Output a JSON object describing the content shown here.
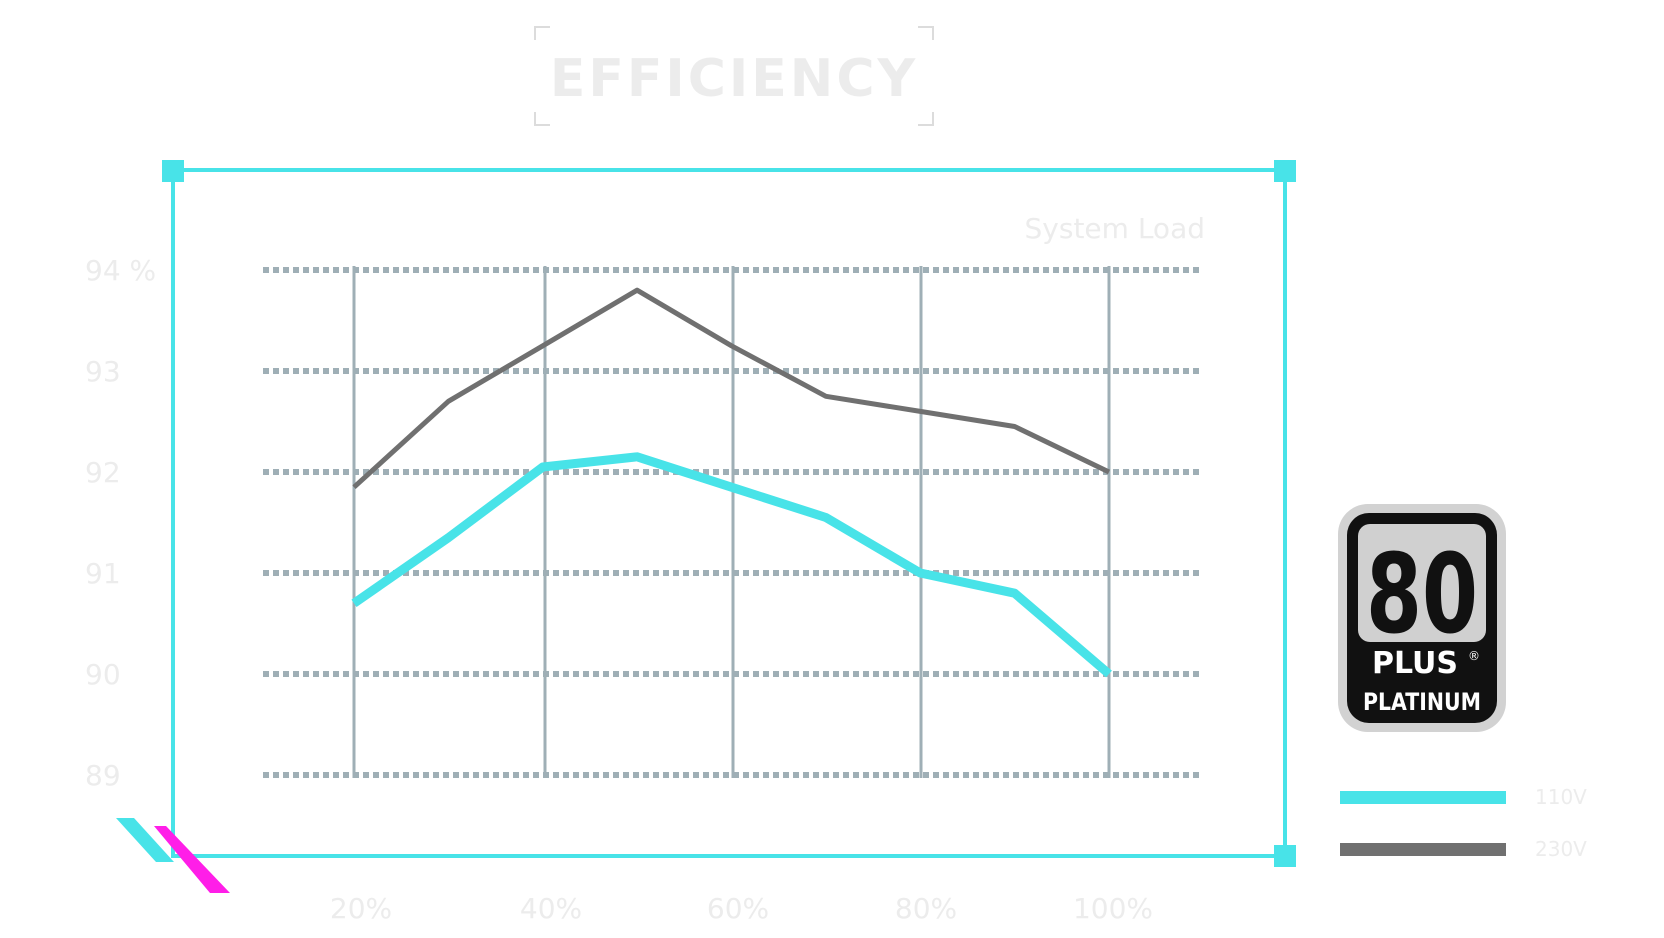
{
  "colors": {
    "frame": "#48e3e8",
    "grid": "#9fafb6",
    "series_110": "#48e3e8",
    "series_230": "#707070",
    "ghost_text": "#ececec",
    "accent_magenta": "#ff1ee8"
  },
  "chart_data": {
    "type": "line",
    "title": "EFFICIENCY",
    "xlabel": "System Load",
    "ylabel": "",
    "x": [
      20,
      30,
      40,
      50,
      60,
      70,
      80,
      90,
      100
    ],
    "x_ticks": [
      "20%",
      "40%",
      "60%",
      "80%",
      "100%"
    ],
    "y_ticks": [
      "94 %",
      "93",
      "92",
      "91",
      "90",
      "89"
    ],
    "y_tick_values": [
      94,
      93,
      92,
      91,
      90,
      89
    ],
    "ylim": [
      89,
      94
    ],
    "xlim": [
      20,
      100
    ],
    "grid": true,
    "legend": "right",
    "series": [
      {
        "name": "110V",
        "values": [
          90.7,
          91.35,
          92.05,
          92.15,
          91.85,
          91.55,
          91.0,
          90.8,
          90.0
        ]
      },
      {
        "name": "230V",
        "values": [
          91.85,
          92.7,
          93.25,
          93.8,
          93.25,
          92.75,
          92.6,
          92.45,
          92.0
        ]
      }
    ]
  },
  "badge": {
    "number": "80",
    "word": "PLUS",
    "reg": "®",
    "tier": "PLATINUM"
  }
}
